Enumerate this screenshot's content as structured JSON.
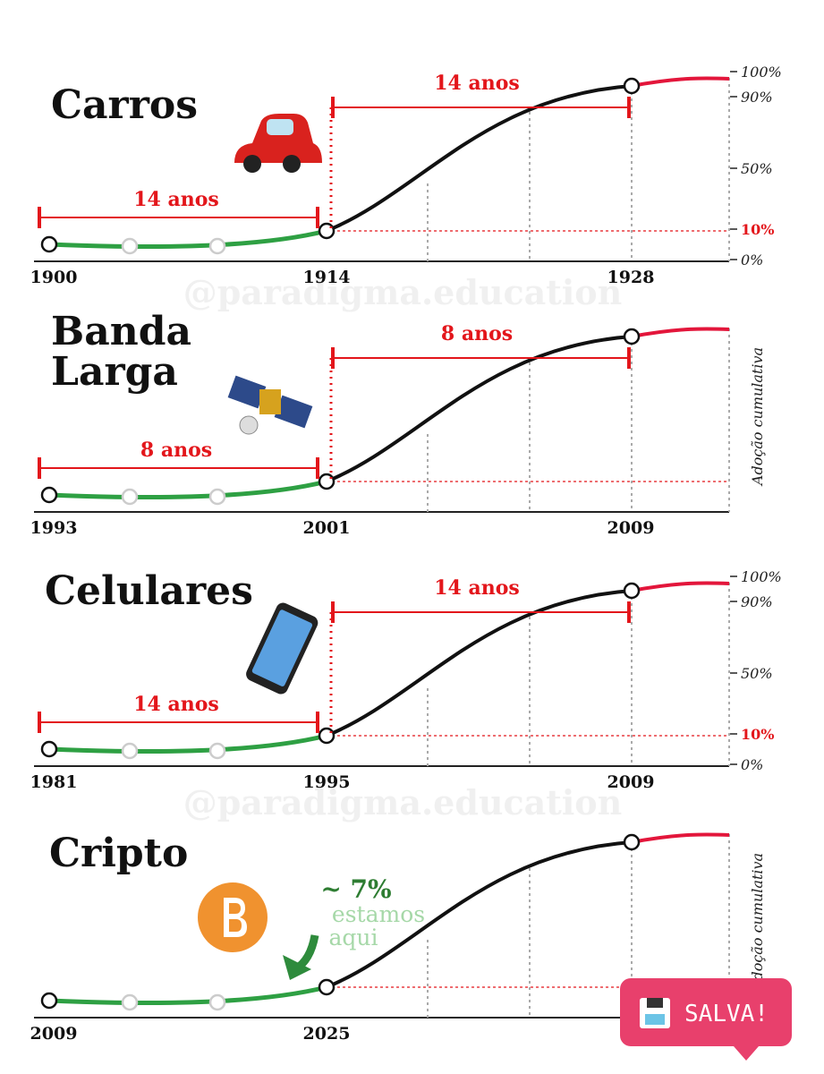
{
  "watermark": "@paradigma.education",
  "button": "SALVA!",
  "panels": [
    {
      "title": [
        "Carros"
      ],
      "years": [
        "1900",
        "1914",
        "1928"
      ],
      "spans": [
        "14 anos",
        "14 anos"
      ],
      "yticks": [
        "100%",
        "90%",
        "50%",
        "10%",
        "0%"
      ]
    },
    {
      "title": [
        "Banda",
        "Larga"
      ],
      "years": [
        "1993",
        "2001",
        "2009"
      ],
      "spans": [
        "8 anos",
        "8 anos"
      ],
      "axis_label": "Adoção cumulativa"
    },
    {
      "title": [
        "Celulares"
      ],
      "years": [
        "1981",
        "1995",
        "2009"
      ],
      "spans": [
        "14 anos",
        "14 anos"
      ],
      "yticks": [
        "100%",
        "90%",
        "50%",
        "10%",
        "0%"
      ]
    },
    {
      "title": [
        "Cripto"
      ],
      "years": [
        "2009",
        "2025"
      ],
      "annotation": [
        "~ 7%",
        "estamos",
        "aqui"
      ],
      "axis_label": "Adoção cumulativa"
    }
  ]
}
